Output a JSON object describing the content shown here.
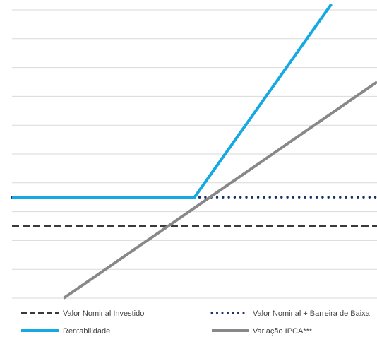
{
  "chart_data": {
    "type": "line",
    "title": "",
    "xlabel": "",
    "ylabel": "",
    "x": [
      0,
      1,
      2,
      3,
      4,
      5,
      6,
      7,
      8,
      9,
      10,
      11,
      12
    ],
    "xlim": [
      0,
      12
    ],
    "ylim": [
      0,
      10
    ],
    "grid": true,
    "legend_position": "bottom",
    "series": [
      {
        "name": "Valor Nominal Investido",
        "style": "dashed",
        "color": "#3a3a3a",
        "x": [
          0,
          12
        ],
        "y": [
          2.5,
          2.5
        ]
      },
      {
        "name": "Valor Nominal + Barreira de Baixa",
        "style": "dotted",
        "color": "#1b2f66",
        "x": [
          0,
          12
        ],
        "y": [
          3.5,
          3.5
        ]
      },
      {
        "name": "Rentabilidade",
        "style": "solid",
        "color": "#14a9e3",
        "x": [
          0,
          6,
          10.5
        ],
        "y": [
          3.5,
          3.5,
          10.2
        ]
      },
      {
        "name": "Variação IPCA***",
        "style": "solid",
        "color": "#888888",
        "x": [
          1.7,
          12
        ],
        "y": [
          0,
          7.5
        ]
      }
    ]
  },
  "legend": [
    {
      "label": "Valor Nominal Investido",
      "style": "dashed",
      "color": "#3a3a3a"
    },
    {
      "label": "Valor Nominal + Barreira de Baixa",
      "style": "dotted",
      "color": "#1b2f66"
    },
    {
      "label": "Rentabilidade",
      "style": "solid",
      "color": "#14a9e3"
    },
    {
      "label": "Variação IPCA***",
      "style": "solid",
      "color": "#888888"
    }
  ]
}
